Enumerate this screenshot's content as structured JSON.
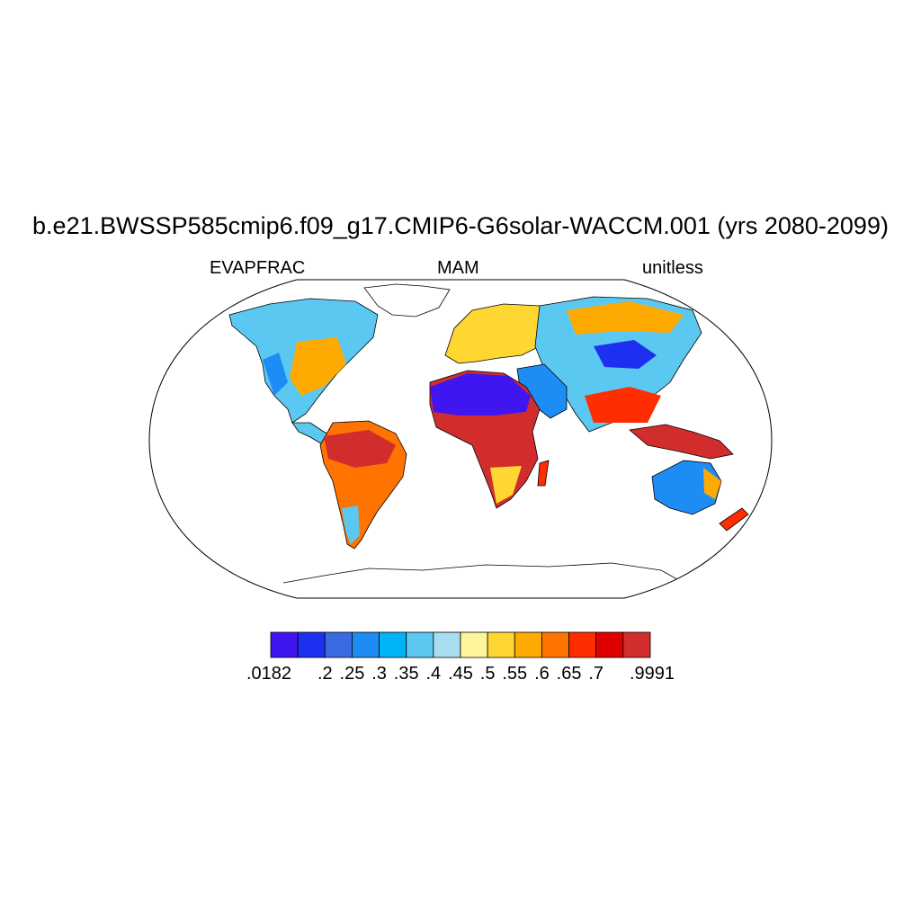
{
  "title": "b.e21.BWSSP585cmip6.f09_g17.CMIP6-G6solar-WACCM.001 (yrs 2080-2099)",
  "left_label": "EVAPFRAC",
  "center_label": "MAM",
  "right_label": "unitless",
  "colorbar": {
    "labels": [
      ".0182",
      ".2",
      ".25",
      ".3",
      ".35",
      ".4",
      ".45",
      ".5",
      ".55",
      ".6",
      ".65",
      ".7",
      ".9991"
    ],
    "colors": [
      "#3f16f0",
      "#1d30f0",
      "#3c6ae2",
      "#1e8cf5",
      "#00b4f5",
      "#5ac8f0",
      "#aadcf0",
      "#fff59b",
      "#ffd732",
      "#ffaa00",
      "#ff7300",
      "#ff2d00",
      "#e10000",
      "#d22d2d"
    ]
  },
  "chart_data": {
    "type": "heatmap",
    "title": "b.e21.BWSSP585cmip6.f09_g17.CMIP6-G6solar-WACCM.001 (yrs 2080-2099)",
    "variable": "EVAPFRAC",
    "season": "MAM",
    "units": "unitless",
    "projection": "Robinson",
    "levels": [
      0.2,
      0.25,
      0.3,
      0.35,
      0.4,
      0.45,
      0.5,
      0.55,
      0.6,
      0.65,
      0.7
    ],
    "min": 0.0182,
    "max": 0.9991
  }
}
